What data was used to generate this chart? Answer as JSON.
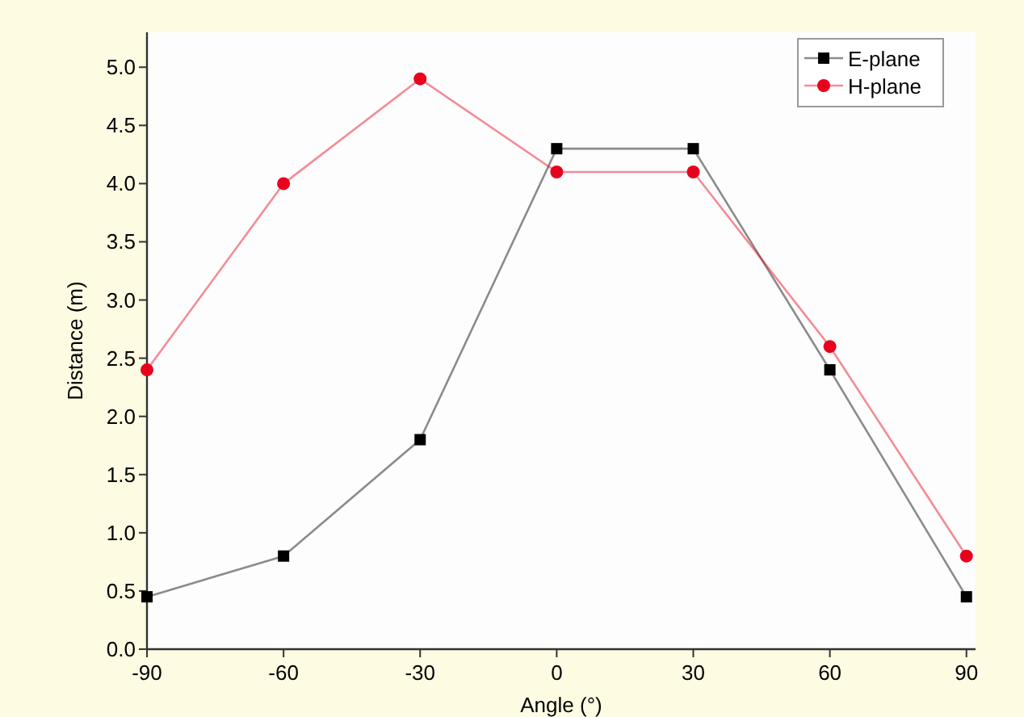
{
  "chart_data": {
    "type": "line",
    "xlabel": "Angle (°)",
    "ylabel": "Distance (m)",
    "x": [
      -90,
      -60,
      -30,
      0,
      30,
      60,
      90
    ],
    "series": [
      {
        "name": "E-plane",
        "color": "#000000",
        "marker": "square",
        "values": [
          0.45,
          0.8,
          1.8,
          4.3,
          4.3,
          2.4,
          0.45
        ]
      },
      {
        "name": "H-plane",
        "color": "#e8001c",
        "marker": "circle",
        "values": [
          2.4,
          4.0,
          4.9,
          4.1,
          4.1,
          2.6,
          0.8
        ]
      }
    ],
    "xlim": [
      -90,
      92
    ],
    "xticks": [
      -90,
      -60,
      -30,
      0,
      30,
      60,
      90
    ],
    "ylim": [
      0,
      5.3
    ],
    "yticks": [
      {
        "value": 0,
        "label": "0.0"
      },
      {
        "value": 0.5,
        "label": "0.5"
      },
      {
        "value": 1,
        "label": "1.0"
      },
      {
        "value": 1.5,
        "label": "1.5"
      },
      {
        "value": 2,
        "label": "2.0"
      },
      {
        "value": 2.5,
        "label": "2.5"
      },
      {
        "value": 3,
        "label": "3.0"
      },
      {
        "value": 3.5,
        "label": "3.5"
      },
      {
        "value": 4,
        "label": "4.0"
      },
      {
        "value": 4.5,
        "label": "4.5"
      },
      {
        "value": 5,
        "label": "5.0"
      }
    ],
    "grid": false,
    "legend": "top right",
    "line_style": "solid"
  }
}
